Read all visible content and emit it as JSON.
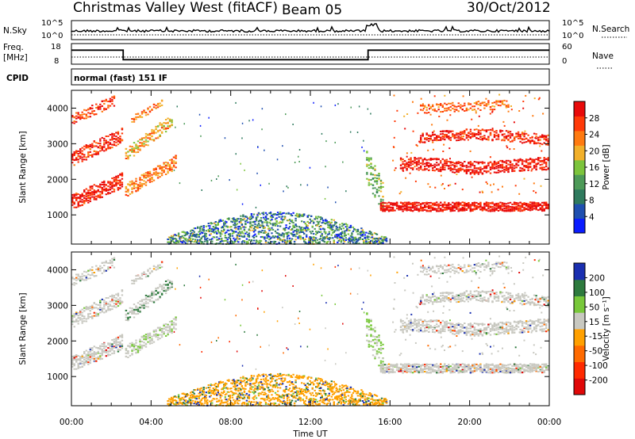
{
  "header": {
    "station": "Christmas Valley West (fitACF)",
    "beam": "Beam 05",
    "date": "30/Oct/2012",
    "mode": "normal (fast) 151 IF",
    "cpid_label": "CPID"
  },
  "noise_panel": {
    "left_label": "N.Sky",
    "right_label": "N.Search",
    "left_ticks": [
      "10^5",
      "10^0"
    ],
    "right_ticks": [
      "10^5",
      "10^0"
    ]
  },
  "freq_panel": {
    "left_label_1": "Freq.",
    "left_label_2": "[MHz]",
    "right_label": "Nave",
    "left_ticks": [
      "18",
      "8"
    ],
    "right_ticks": [
      "60",
      "0"
    ]
  },
  "colors": {
    "power_scale": [
      "#0a1cff",
      "#1f4fb0",
      "#2f7a5e",
      "#4d9a58",
      "#7cc43c",
      "#f2b02a",
      "#ff7a10",
      "#ff3a08",
      "#e80a0a"
    ],
    "velocity_scale": [
      "#1a2fb0",
      "#2e7a3e",
      "#78c83a",
      "#c8c8c0",
      "#ffa000",
      "#ff6a00",
      "#ff2a00",
      "#e00808"
    ],
    "frame": "#000000"
  },
  "chart_data": [
    {
      "type": "heatmap",
      "panel": "power",
      "xlabel": "Time UT",
      "ylabel": "Slant Range [km]",
      "xlim": [
        0,
        24
      ],
      "ylim": [
        180,
        4500
      ],
      "x_ticks": [
        "00:00",
        "04:00",
        "08:00",
        "12:00",
        "16:00",
        "20:00",
        "00:00"
      ],
      "y_ticks": [
        "1000",
        "2000",
        "3000",
        "4000"
      ],
      "colorbar_label": "Power [dB]",
      "colorbar_ticks": [
        "4",
        "8",
        "12",
        "16",
        "20",
        "24",
        "28"
      ],
      "colorbar_range": [
        0,
        30
      ]
    },
    {
      "type": "heatmap",
      "panel": "velocity",
      "xlabel": "Time UT",
      "ylabel": "Slant Range [km]",
      "xlim": [
        0,
        24
      ],
      "ylim": [
        180,
        4500
      ],
      "x_ticks": [
        "00:00",
        "04:00",
        "08:00",
        "12:00",
        "16:00",
        "20:00",
        "00:00"
      ],
      "y_ticks": [
        "1000",
        "2000",
        "3000",
        "4000"
      ],
      "colorbar_label": "Velocity [m s⁻¹]",
      "colorbar_ticks": [
        "200",
        "100",
        "50",
        "15",
        "-15",
        "-50",
        "-100",
        "-200"
      ],
      "colorbar_range": [
        -250,
        250
      ]
    },
    {
      "type": "line",
      "panel": "frequency",
      "x": [
        0,
        2.6,
        2.6,
        14.9,
        14.9,
        24
      ],
      "series": [
        {
          "values": [
            14.8,
            14.8,
            10.2,
            10.2,
            14.8,
            14.8
          ]
        }
      ],
      "ylim": [
        8,
        18
      ]
    }
  ]
}
